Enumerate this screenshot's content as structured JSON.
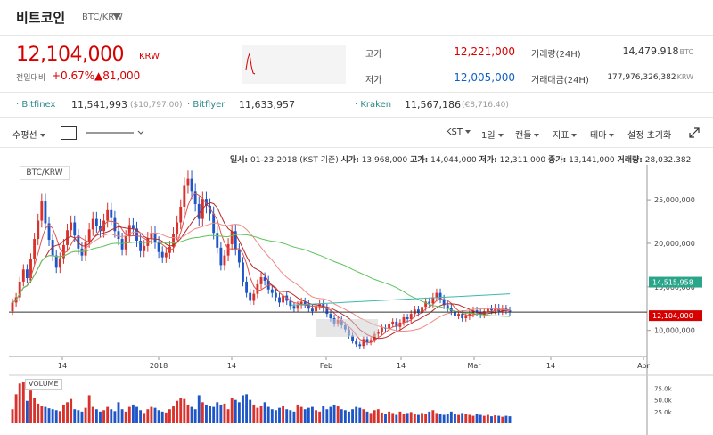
{
  "header": {
    "title": "비트코인",
    "pair": "BTC/KRW"
  },
  "price": {
    "current": "12,104,000",
    "unit": "KRW",
    "change_label": "전일대비",
    "change_rate": "+0.67%",
    "change_amount": "▲81,000"
  },
  "stats": {
    "high_label": "고가",
    "high_value": "12,221,000",
    "low_label": "저가",
    "low_value": "12,005,000",
    "volume_label": "거래량(24H)",
    "volume_value": "14,479.918",
    "volume_unit": "BTC",
    "amount_label": "거래대금(24H)",
    "amount_value": "177,976,326,382",
    "amount_unit": "KRW"
  },
  "exchanges": [
    {
      "name": "Bitfinex",
      "price": "11,541,993",
      "usd": "($10,797.00)"
    },
    {
      "name": "Bitflyer",
      "price": "11,633,957",
      "usd": ""
    },
    {
      "name": "Kraken",
      "price": "11,567,186",
      "usd": "(€8,716.40)"
    }
  ],
  "toolbar": {
    "hline": "수평선",
    "timezone": "KST",
    "interval": "1일",
    "candle": "캔들",
    "indicator": "지표",
    "theme": "테마",
    "reset": "설정 초기화"
  },
  "ohlc": {
    "date_label": "일시:",
    "date": "01-23-2018 (KST 기준)",
    "open_label": "시가:",
    "open": "13,968,000",
    "high_label": "고가:",
    "high": "14,044,000",
    "low_label": "저가:",
    "low": "12,311,000",
    "close_label": "종가:",
    "close": "13,141,000",
    "vol_label": "거래량:",
    "vol": "28,032.382"
  },
  "chart_data": {
    "type": "candlestick",
    "pair_label": "BTC/KRW",
    "volume_label": "VOLUME",
    "x_ticks": [
      "14",
      "2018",
      "14",
      "Feb",
      "14",
      "Mar",
      "14",
      "Apr"
    ],
    "y_ticks": [
      "25,000,000",
      "20,000,000",
      "15,000,000",
      "10,000,000"
    ],
    "y_range": [
      7000000,
      29000000
    ],
    "volume_ticks": [
      "75.0k",
      "50.0k",
      "25.0k"
    ],
    "volume_range": [
      0,
      95000
    ],
    "price_tags": [
      {
        "value": 14515958,
        "label": "14,515,958",
        "color": "#2aa58a"
      },
      {
        "value": 12104000,
        "label": "12,104,000",
        "color": "#d60000"
      }
    ],
    "closes": [
      13.2,
      13.8,
      15.6,
      17.0,
      16.0,
      18.2,
      20.5,
      22.6,
      24.8,
      22.3,
      20.4,
      18.6,
      17.2,
      18.3,
      19.8,
      21.5,
      22.4,
      20.9,
      19.4,
      18.6,
      20.2,
      21.6,
      22.8,
      22.0,
      21.4,
      22.6,
      23.8,
      22.9,
      21.4,
      20.5,
      19.3,
      20.8,
      22.1,
      21.7,
      20.3,
      19.1,
      19.7,
      20.6,
      21.2,
      20.1,
      19.0,
      18.4,
      18.9,
      19.6,
      21.1,
      22.4,
      24.2,
      26.6,
      27.4,
      26.0,
      24.5,
      22.8,
      25.1,
      24.3,
      23.4,
      21.2,
      19.5,
      17.5,
      18.6,
      19.9,
      21.4,
      19.3,
      17.8,
      15.6,
      14.3,
      13.4,
      14.2,
      15.3,
      16.1,
      15.7,
      14.7,
      14.3,
      13.8,
      13.2,
      14.0,
      13.4,
      12.8,
      12.5,
      12.9,
      13.3,
      13.0,
      12.5,
      12.2,
      12.8,
      13.1,
      12.6,
      11.9,
      11.4,
      10.8,
      11.2,
      10.6,
      10.1,
      9.4,
      8.8,
      8.4,
      8.2,
      9.0,
      8.6,
      8.9,
      9.6,
      9.8,
      10.3,
      10.2,
      10.7,
      11.0,
      10.4,
      10.9,
      11.5,
      11.3,
      11.9,
      12.4,
      12.0,
      12.7,
      13.3,
      13.1,
      13.8,
      14.3,
      13.6,
      12.9,
      12.6,
      12.2,
      11.7,
      11.9,
      11.4,
      11.6,
      11.9,
      12.3,
      12.1,
      11.8,
      12.2,
      12.5,
      12.3,
      12.6,
      12.2,
      12.5,
      12.3,
      12.104
    ],
    "opens": [
      12.2,
      13.2,
      13.8,
      15.6,
      17.0,
      16.0,
      18.2,
      20.5,
      22.6,
      24.8,
      22.3,
      20.4,
      18.6,
      17.2,
      18.3,
      19.8,
      21.5,
      22.4,
      20.9,
      19.4,
      18.6,
      20.2,
      21.6,
      22.8,
      22.0,
      21.4,
      22.6,
      23.8,
      22.9,
      21.4,
      20.5,
      19.3,
      20.8,
      22.1,
      21.7,
      20.3,
      19.1,
      19.7,
      20.6,
      21.2,
      20.1,
      19.0,
      18.4,
      18.9,
      19.6,
      21.1,
      22.4,
      24.2,
      26.6,
      27.4,
      26.0,
      24.5,
      22.8,
      25.1,
      24.3,
      23.4,
      21.2,
      19.5,
      17.5,
      18.6,
      19.9,
      21.4,
      19.3,
      17.8,
      15.6,
      14.3,
      13.4,
      14.2,
      15.3,
      16.1,
      15.7,
      14.7,
      14.3,
      13.8,
      13.2,
      14.0,
      13.4,
      12.8,
      12.5,
      12.9,
      13.3,
      13.0,
      12.5,
      12.2,
      12.8,
      13.1,
      12.6,
      11.9,
      11.4,
      10.8,
      11.2,
      10.6,
      10.1,
      9.4,
      8.8,
      8.4,
      8.2,
      9.0,
      8.6,
      8.9,
      9.6,
      9.8,
      10.3,
      10.2,
      10.7,
      11.0,
      10.4,
      10.9,
      11.5,
      11.3,
      11.9,
      12.4,
      12.0,
      12.7,
      13.3,
      13.1,
      13.8,
      14.3,
      13.6,
      12.9,
      12.6,
      12.2,
      11.7,
      11.9,
      11.4,
      11.6,
      11.9,
      12.3,
      12.1,
      11.8,
      12.2,
      12.5,
      12.3,
      12.6,
      12.2,
      12.5,
      12.3
    ],
    "volumes": [
      30,
      62,
      85,
      88,
      48,
      70,
      55,
      42,
      38,
      35,
      32,
      30,
      28,
      26,
      40,
      45,
      52,
      30,
      28,
      25,
      33,
      60,
      35,
      30,
      25,
      28,
      35,
      30,
      26,
      45,
      30,
      25,
      35,
      40,
      35,
      28,
      22,
      30,
      35,
      33,
      28,
      25,
      23,
      30,
      36,
      48,
      55,
      52,
      40,
      35,
      30,
      60,
      45,
      40,
      38,
      35,
      45,
      40,
      42,
      30,
      55,
      50,
      45,
      60,
      62,
      50,
      40,
      33,
      38,
      45,
      35,
      30,
      28,
      33,
      38,
      30,
      28,
      25,
      40,
      35,
      30,
      33,
      35,
      28,
      25,
      38,
      30,
      35,
      40,
      36,
      30,
      28,
      25,
      30,
      35,
      33,
      30,
      25,
      22,
      28,
      30,
      23,
      20,
      25,
      22,
      18,
      25,
      20,
      22,
      24,
      20,
      18,
      22,
      20,
      25,
      28,
      22,
      20,
      18,
      21,
      25,
      20,
      18,
      22,
      20,
      18,
      16,
      20,
      18,
      16,
      18,
      15,
      17,
      16,
      14,
      16,
      15
    ]
  }
}
